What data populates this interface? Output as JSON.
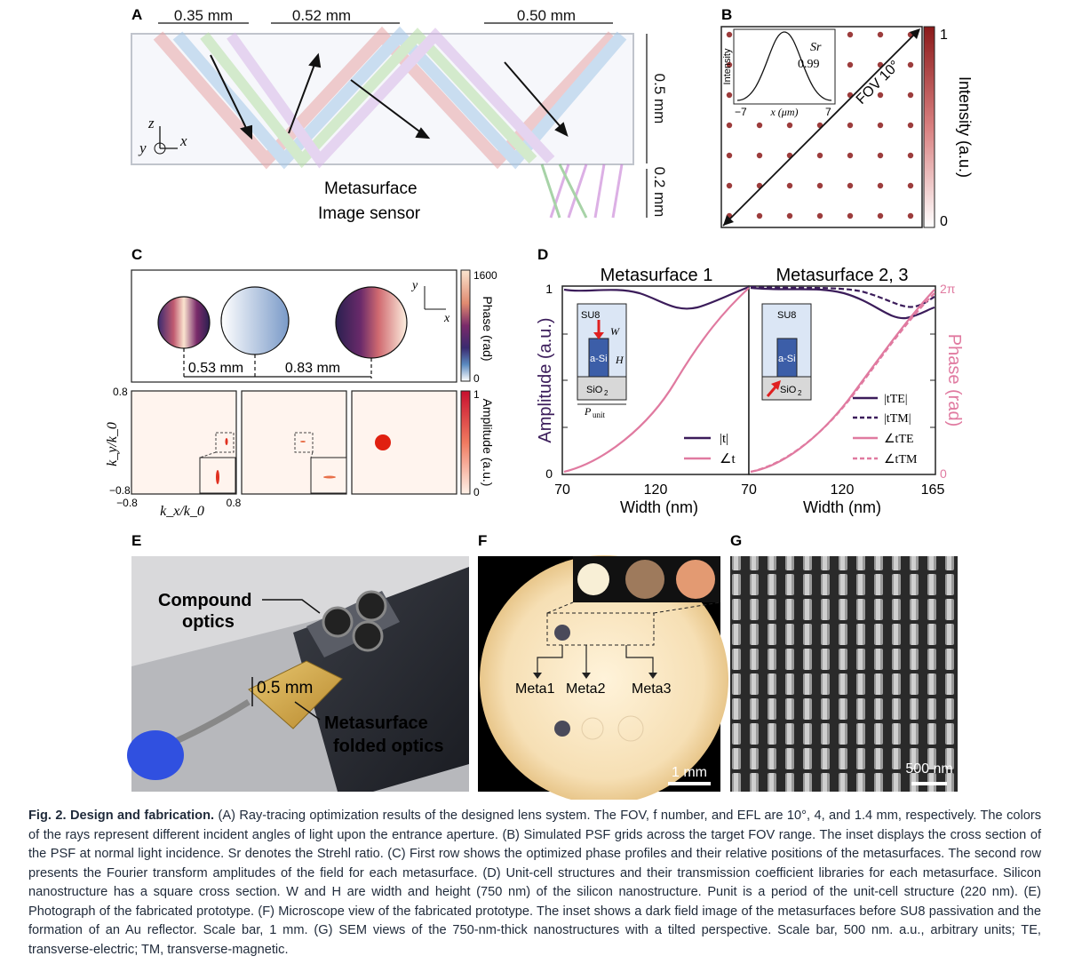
{
  "panels": {
    "A": {
      "letter": "A",
      "dims": [
        "0.35 mm",
        "0.52 mm",
        "0.50 mm"
      ],
      "vertical_dims": [
        "0.5 mm",
        "0.2 mm"
      ],
      "axes": {
        "z": "z",
        "y": "y",
        "x": "x"
      },
      "legend": [
        "Metasurface",
        "Image sensor"
      ]
    },
    "B": {
      "letter": "B",
      "inset": {
        "ylabel": "Intensity",
        "xlabel": "x (μm)",
        "xmin": "−7",
        "xmax": "7",
        "sr_label": "Sr",
        "sr_value": "0.99"
      },
      "fov_label": "FOV 10°",
      "colorbar": {
        "label": "Intensity (a.u.)",
        "max": "1",
        "min": "0",
        "colors": [
          "#8b1a1a",
          "#ffffff"
        ]
      },
      "grid_points": 7
    },
    "C": {
      "letter": "C",
      "spacings": [
        "0.53 mm",
        "0.83 mm"
      ],
      "axes": {
        "y": "y",
        "x": "x"
      },
      "phase_bar": {
        "label": "Phase (rad)",
        "max": "1600",
        "min": "0"
      },
      "amp_bar": {
        "label": "Amplitude (a.u.)",
        "max": "1",
        "min": "0"
      },
      "k_axes": {
        "ylabel": "k_y/k_0",
        "xlabel": "k_x/k_0",
        "ymax": "0.8",
        "ymin": "−0.8",
        "xmin": "−0.8",
        "xmax": "0.8"
      }
    },
    "D": {
      "letter": "D",
      "left_title": "Metasurface 1",
      "right_title": "Metasurface 2, 3",
      "ylabel_left": "Amplitude (a.u.)",
      "ylabel_right": "Phase (rad)",
      "xlabel": "Width (nm)",
      "left_ticks": [
        "70",
        "120"
      ],
      "right_ticks": [
        "70",
        "120",
        "165"
      ],
      "left_yticks": [
        "1",
        "0"
      ],
      "right_yticks": [
        "2π",
        "0"
      ],
      "inset": {
        "su8": "SU8",
        "asi": "a-Si",
        "sio2": "SiO",
        "sio2_sub": "2",
        "w": "W",
        "h": "H",
        "p": "P",
        "p_sub": "unit"
      },
      "legend_left": [
        "|t|",
        "∠t"
      ],
      "legend_right": [
        "|tTE|",
        "|tTM|",
        "∠tTE",
        "∠tTM"
      ],
      "colors": {
        "amplitude": "#3b1c5a",
        "phase": "#e07aa0"
      }
    },
    "E": {
      "letter": "E",
      "label_compound": [
        "Compound",
        "optics"
      ],
      "label_thickness": "0.5 mm",
      "label_meta": [
        "Metasurface",
        "folded optics"
      ]
    },
    "F": {
      "letter": "F",
      "labels": [
        "Meta1",
        "Meta2",
        "Meta3"
      ],
      "scale": "1 mm"
    },
    "G": {
      "letter": "G",
      "scale": "500 nm"
    }
  },
  "caption": {
    "title": "Fig. 2. Design and fabrication.",
    "text": " (A) Ray-tracing optimization results of the designed lens system. The FOV, f number, and EFL are 10°, 4, and 1.4 mm, respectively. The colors of the rays represent different incident angles of light upon the entrance aperture. (B) Simulated PSF grids across the target FOV range. The inset displays the cross section of the PSF at normal light incidence. Sr denotes the Strehl ratio. (C) First row shows the optimized phase profiles and their relative positions of the metasurfaces. The second row presents the Fourier transform amplitudes of the field for each metasurface. (D) Unit-cell structures and their transmission coefficient libraries for each metasurface. Silicon nanostructure has a square cross section. W and H are width and height (750 nm) of the silicon nanostructure. Punit is a period of the unit-cell structure (220 nm). (E) Photograph of the fabricated prototype. (F) Microscope view of the fabricated prototype. The inset shows a dark field image of the metasurfaces before SU8 passivation and the formation of an Au reflector. Scale bar, 1 mm. (G) SEM views of the 750-nm-thick nanostructures with a tilted perspective. Scale bar, 500 nm. a.u., arbitrary units; TE, transverse-electric; TM, transverse-magnetic."
  }
}
